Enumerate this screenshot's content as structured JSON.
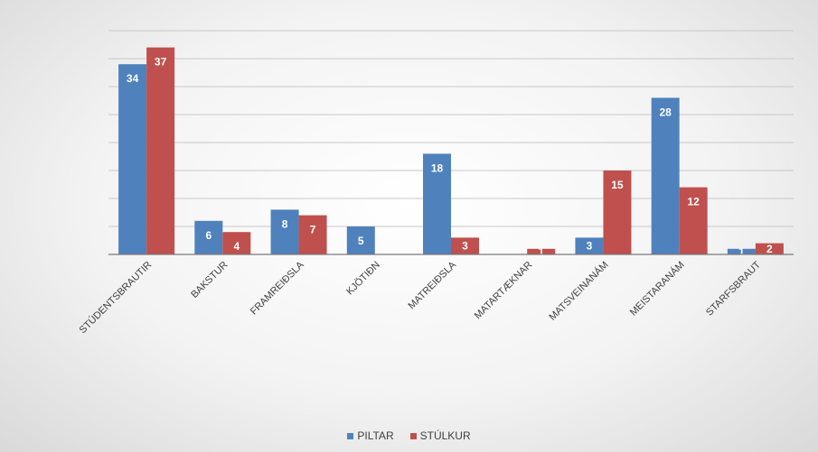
{
  "chart_data": {
    "type": "bar",
    "title": "",
    "xlabel": "",
    "ylabel": "",
    "ylim": [
      0,
      40
    ],
    "grid": true,
    "legend_position": "bottom",
    "categories": [
      "STÚDENTSBRAUTIR",
      "BAKSTUR",
      "FRAMREIÐSLA",
      "KJÖTIÐN",
      "MATREIÐSLA",
      "MATARTÆKNAR",
      "MATSVEINANÁM",
      "MEISTARANÁM",
      "STARFSBRAUT"
    ],
    "series": [
      {
        "name": "PILTAR",
        "color": "#4f81bd",
        "values": [
          34,
          6,
          8,
          5,
          18,
          null,
          3,
          28,
          1
        ],
        "labels": [
          "34",
          "6",
          "8",
          "5",
          "18",
          "",
          "3",
          "28",
          "1"
        ]
      },
      {
        "name": "STÚLKUR",
        "color": "#c0504d",
        "values": [
          37,
          4,
          7,
          null,
          3,
          1,
          15,
          12,
          2
        ],
        "labels": [
          "37",
          "4",
          "7",
          "",
          "3",
          "1",
          "15",
          "12",
          "2"
        ]
      }
    ]
  }
}
